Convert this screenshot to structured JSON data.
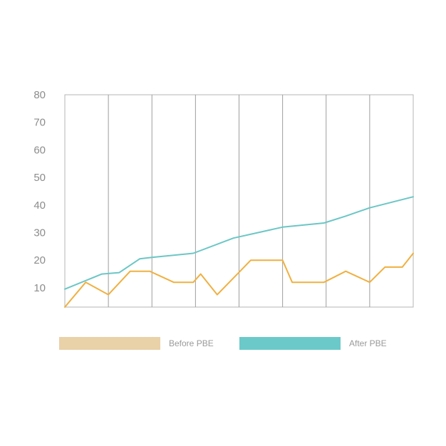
{
  "chart_data": {
    "type": "line",
    "title": "",
    "xlabel": "",
    "ylabel": "",
    "ylim": [
      3,
      80
    ],
    "yticks": [
      10,
      20,
      30,
      40,
      50,
      60,
      70,
      80
    ],
    "ytick_labels": [
      "10",
      "20",
      "30",
      "40",
      "50",
      "60",
      "70",
      "80"
    ],
    "xlim": [
      0,
      8
    ],
    "x_grid_divisions": 8,
    "grid": "vertical",
    "legend_position": "bottom",
    "series": [
      {
        "name": "Before  PBE",
        "line_color": "#f0b040",
        "legend_color": "#e9d1a8",
        "x": [
          0,
          0.48,
          1.0,
          1.5,
          1.95,
          2.5,
          2.95,
          3.12,
          3.5,
          4.27,
          5.0,
          5.22,
          5.95,
          6.45,
          7.0,
          7.35,
          7.75,
          8.0
        ],
        "values": [
          3,
          12,
          7.5,
          16,
          16,
          12,
          12,
          15,
          7.5,
          20,
          20,
          12,
          12,
          16,
          12,
          17.5,
          17.5,
          22.5
        ]
      },
      {
        "name": "After  PBE",
        "line_color": "#6cc6c6",
        "legend_color": "#6bc9c9",
        "x": [
          0,
          0.85,
          1.25,
          1.72,
          2.0,
          2.95,
          3.87,
          5.0,
          5.95,
          6.45,
          7.0,
          8.0
        ],
        "values": [
          9.5,
          15,
          15.5,
          20.5,
          21,
          22.5,
          28,
          32,
          33.5,
          36,
          39,
          43
        ]
      }
    ]
  }
}
